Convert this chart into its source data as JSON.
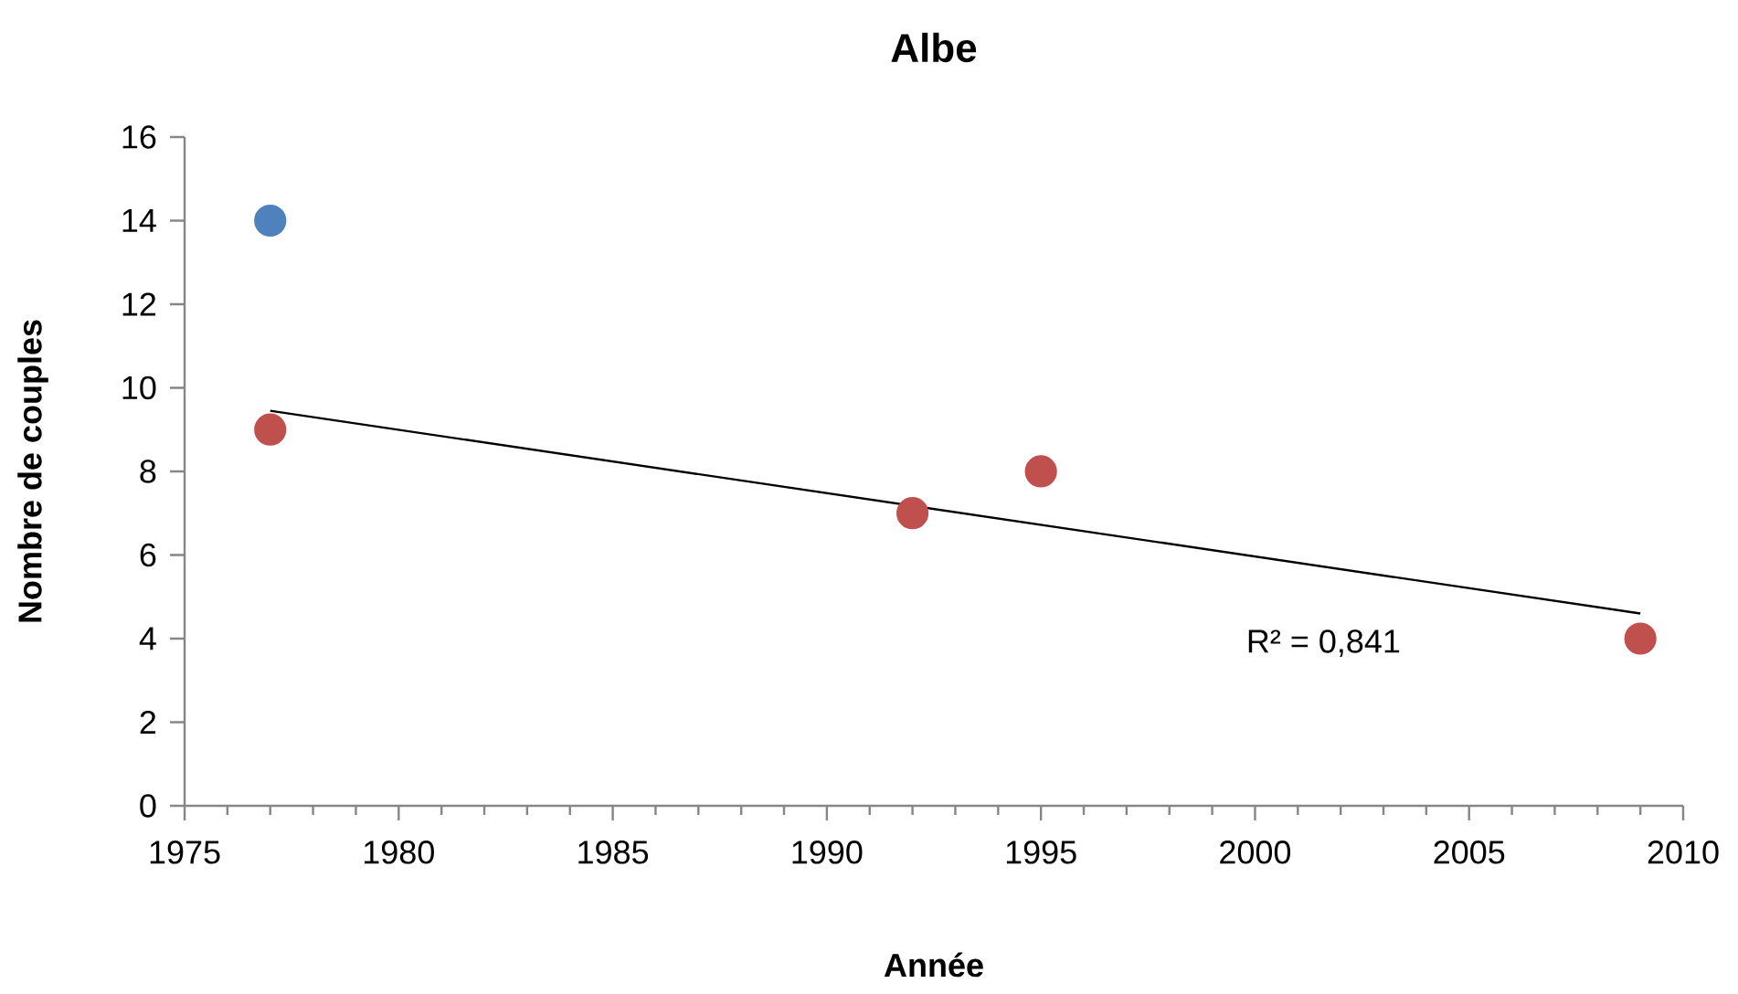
{
  "chart_data": {
    "type": "scatter",
    "title": "Albe",
    "xlabel": "Année",
    "ylabel": "Nombre de couples",
    "legend": false,
    "grid": false,
    "xlim": [
      1975,
      2010
    ],
    "xticks": [
      1975,
      1980,
      1985,
      1990,
      1995,
      2000,
      2005,
      2010
    ],
    "ylim": [
      0,
      16
    ],
    "yticks": [
      0,
      2,
      4,
      6,
      8,
      10,
      12,
      14,
      16
    ],
    "series": [
      {
        "type": "scatter",
        "marker": "circle",
        "color": "#4f81bd",
        "x": [
          1977
        ],
        "values": [
          14
        ]
      },
      {
        "type": "scatter",
        "marker": "circle",
        "color": "#c0504d",
        "x": [
          1977,
          1992,
          1995,
          2009
        ],
        "values": [
          9,
          7,
          8,
          4
        ]
      },
      {
        "type": "line",
        "marker": "none",
        "color": "#000000",
        "x": [
          1977,
          2009
        ],
        "values": [
          9.45,
          4.6
        ]
      }
    ],
    "annotations": [
      "R² = 0,841"
    ]
  }
}
